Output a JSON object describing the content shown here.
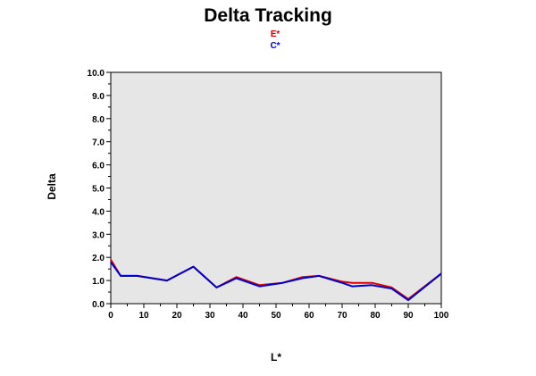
{
  "chart_data": {
    "type": "line",
    "title": "Delta Tracking",
    "xlabel": "L*",
    "ylabel": "Delta",
    "xlim": [
      0,
      100
    ],
    "ylim": [
      0,
      10
    ],
    "x_ticks": [
      "0",
      "10",
      "20",
      "30",
      "40",
      "50",
      "60",
      "70",
      "80",
      "90",
      "100"
    ],
    "y_ticks": [
      "0.0",
      "1.0",
      "2.0",
      "3.0",
      "4.0",
      "5.0",
      "6.0",
      "7.0",
      "8.0",
      "9.0",
      "10.0"
    ],
    "grid": false,
    "legend_position": "top-center",
    "plot_background": "#e6e6e6",
    "series": [
      {
        "name": "E*",
        "color": "#dd0000",
        "x": [
          0,
          3,
          8,
          17,
          25,
          32,
          38,
          45,
          52,
          58,
          63,
          70,
          73,
          79,
          85,
          90,
          100
        ],
        "y": [
          1.9,
          1.2,
          1.2,
          1.0,
          1.6,
          0.7,
          1.15,
          0.8,
          0.9,
          1.15,
          1.2,
          0.95,
          0.9,
          0.9,
          0.7,
          0.2,
          1.3
        ]
      },
      {
        "name": "C*",
        "color": "#0000cc",
        "x": [
          0,
          3,
          8,
          17,
          25,
          32,
          38,
          45,
          52,
          58,
          63,
          70,
          73,
          79,
          85,
          90,
          100
        ],
        "y": [
          1.8,
          1.2,
          1.2,
          1.0,
          1.6,
          0.7,
          1.1,
          0.75,
          0.9,
          1.1,
          1.2,
          0.9,
          0.75,
          0.8,
          0.65,
          0.15,
          1.3
        ]
      }
    ]
  }
}
